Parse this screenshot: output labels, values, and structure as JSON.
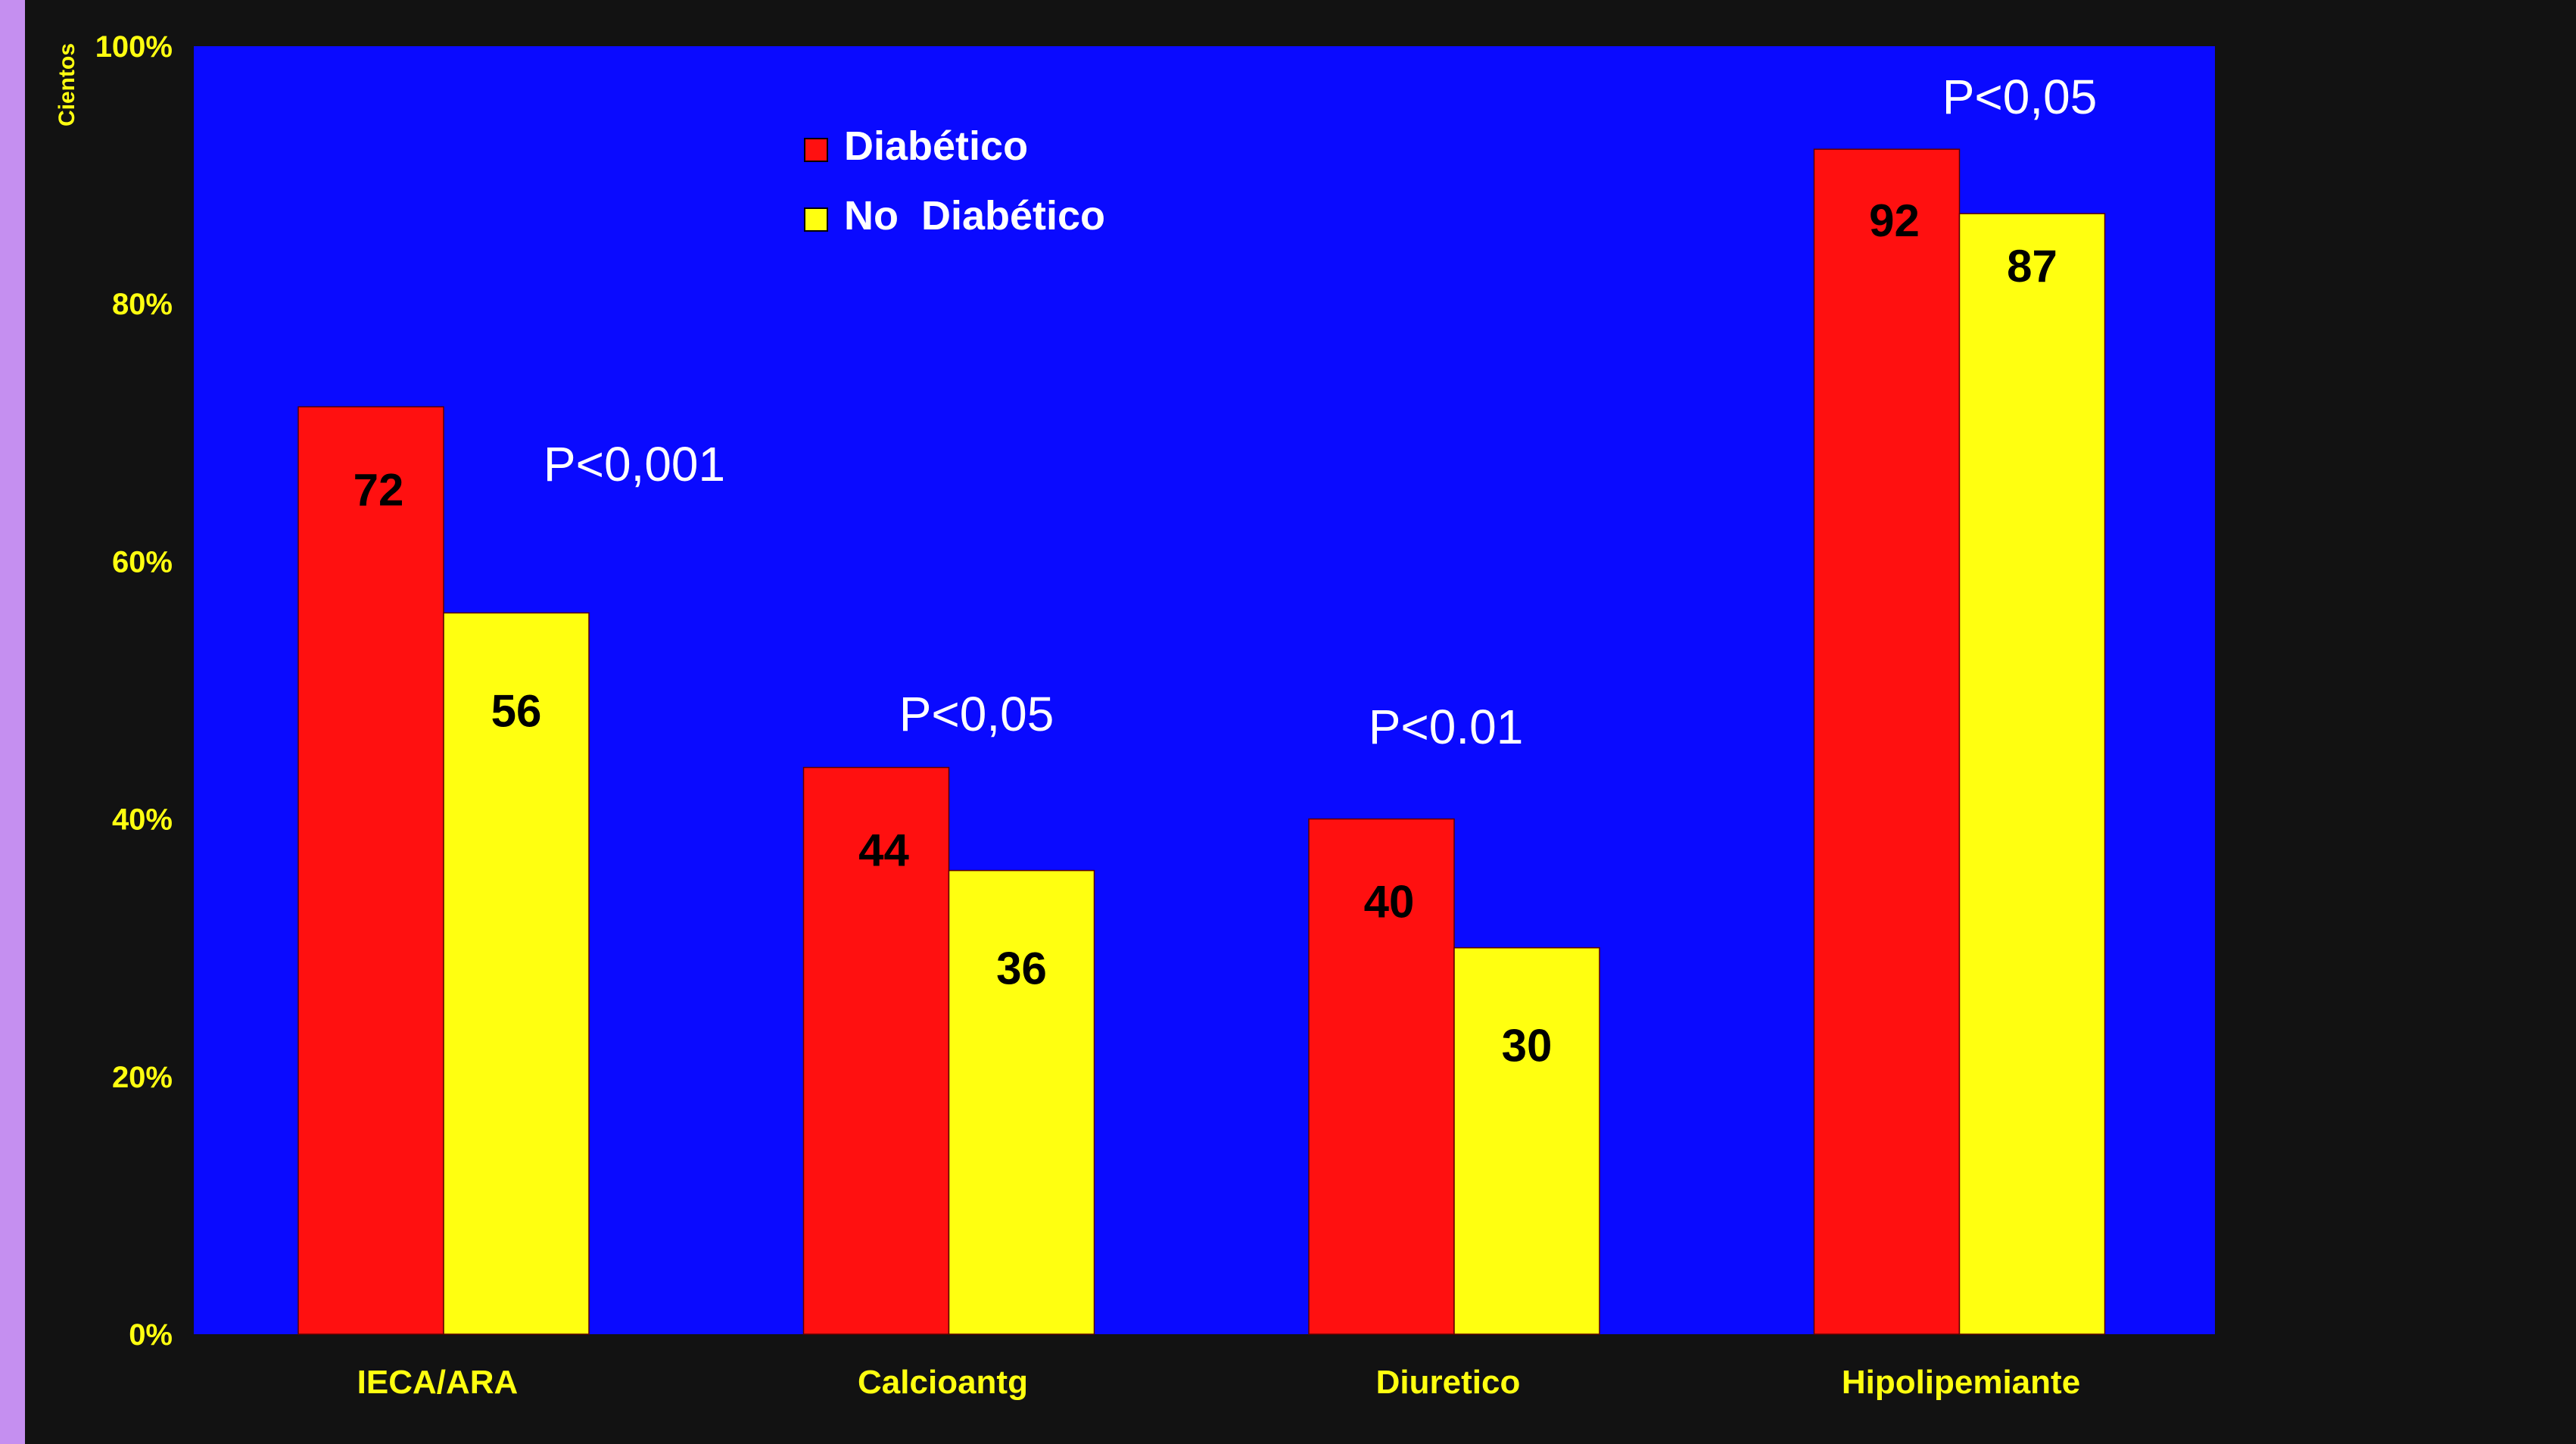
{
  "chart_data": {
    "type": "bar",
    "ylabel": "Cientos",
    "ylim": [
      0,
      100
    ],
    "y_ticks": [
      "0%",
      "20%",
      "40%",
      "60%",
      "80%",
      "100%"
    ],
    "y_tick_values": [
      0,
      20,
      40,
      60,
      80,
      100
    ],
    "categories": [
      "IECA/ARA",
      "Calcioantg",
      "Diuretico",
      "Hipolipemiante"
    ],
    "series": [
      {
        "name": "Diabético",
        "color": "#ff1010",
        "values": [
          72,
          44,
          40,
          92
        ]
      },
      {
        "name": "No  Diabético",
        "color": "#ffff10",
        "values": [
          56,
          36,
          30,
          87
        ]
      }
    ],
    "data_labels": [
      [
        "72",
        "44",
        "40",
        "92"
      ],
      [
        "56",
        "36",
        "30",
        "87"
      ]
    ],
    "annotations": [
      "P<0,001",
      "P<0,05",
      "P<0.01",
      "P<0,05"
    ],
    "legend_position": "top-left",
    "grid": false
  },
  "colors": {
    "page_background": "#121212",
    "plot_background": "#0a0aff",
    "axis_text": "#ffff10",
    "annotation_text": "#ffffff",
    "legend_text": "#ffffff",
    "left_strip": "#c58ff0"
  }
}
